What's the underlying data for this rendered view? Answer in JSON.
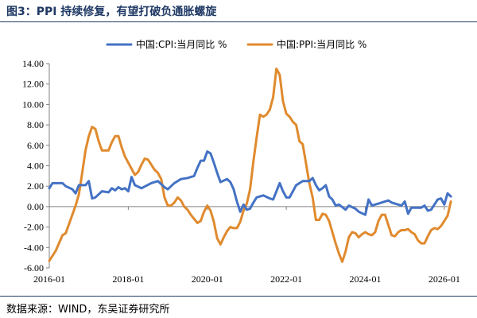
{
  "figure": {
    "title": "图3：PPI 持续修复，有望打破负通胀螺旋",
    "source": "数据来源：WIND，东吴证券研究所"
  },
  "chart_data": {
    "type": "line",
    "x_unit": "month",
    "x_start": "2016-01",
    "x_end": "2026-02",
    "ylim": [
      -6,
      14
    ],
    "yticks": [
      "-6.00",
      "-4.00",
      "-2.00",
      "0.00",
      "2.00",
      "4.00",
      "6.00",
      "8.00",
      "10.00",
      "12.00",
      "14.00"
    ],
    "xticks": [
      "2016-01",
      "2018-01",
      "2020-01",
      "2022-01",
      "2024-01",
      "2026-01"
    ],
    "legend_position": "top",
    "grid": false,
    "series": [
      {
        "name": "中国:CPI:当月同比 %",
        "color": "#4472c4",
        "points": [
          [
            "2016-01",
            1.8
          ],
          [
            "2016-02",
            2.3
          ],
          [
            "2016-05",
            2.3
          ],
          [
            "2016-06",
            2.0
          ],
          [
            "2016-08",
            1.7
          ],
          [
            "2016-09",
            1.3
          ],
          [
            "2016-10",
            2.1
          ],
          [
            "2016-12",
            2.1
          ],
          [
            "2017-01",
            2.5
          ],
          [
            "2017-02",
            0.8
          ],
          [
            "2017-03",
            0.9
          ],
          [
            "2017-05",
            1.5
          ],
          [
            "2017-07",
            1.4
          ],
          [
            "2017-08",
            1.8
          ],
          [
            "2017-09",
            1.6
          ],
          [
            "2017-10",
            1.9
          ],
          [
            "2017-11",
            1.7
          ],
          [
            "2017-12",
            1.8
          ],
          [
            "2018-01",
            1.5
          ],
          [
            "2018-02",
            2.9
          ],
          [
            "2018-03",
            2.1
          ],
          [
            "2018-05",
            1.8
          ],
          [
            "2018-08",
            2.3
          ],
          [
            "2018-10",
            2.5
          ],
          [
            "2018-12",
            1.9
          ],
          [
            "2019-01",
            1.7
          ],
          [
            "2019-03",
            2.3
          ],
          [
            "2019-05",
            2.7
          ],
          [
            "2019-07",
            2.8
          ],
          [
            "2019-09",
            3.0
          ],
          [
            "2019-10",
            3.8
          ],
          [
            "2019-11",
            4.5
          ],
          [
            "2019-12",
            4.5
          ],
          [
            "2020-01",
            5.4
          ],
          [
            "2020-02",
            5.2
          ],
          [
            "2020-03",
            4.3
          ],
          [
            "2020-04",
            3.3
          ],
          [
            "2020-05",
            2.4
          ],
          [
            "2020-07",
            2.7
          ],
          [
            "2020-08",
            2.4
          ],
          [
            "2020-09",
            1.7
          ],
          [
            "2020-10",
            0.5
          ],
          [
            "2020-11",
            -0.5
          ],
          [
            "2020-12",
            0.2
          ],
          [
            "2021-01",
            -0.3
          ],
          [
            "2021-02",
            -0.2
          ],
          [
            "2021-03",
            0.4
          ],
          [
            "2021-04",
            0.9
          ],
          [
            "2021-06",
            1.1
          ],
          [
            "2021-08",
            0.8
          ],
          [
            "2021-09",
            0.7
          ],
          [
            "2021-10",
            1.5
          ],
          [
            "2021-11",
            2.3
          ],
          [
            "2021-12",
            1.5
          ],
          [
            "2022-01",
            0.9
          ],
          [
            "2022-02",
            0.9
          ],
          [
            "2022-03",
            1.5
          ],
          [
            "2022-04",
            2.1
          ],
          [
            "2022-06",
            2.5
          ],
          [
            "2022-08",
            2.5
          ],
          [
            "2022-09",
            2.8
          ],
          [
            "2022-10",
            2.1
          ],
          [
            "2022-11",
            1.6
          ],
          [
            "2022-12",
            1.8
          ],
          [
            "2023-01",
            2.1
          ],
          [
            "2023-02",
            1.0
          ],
          [
            "2023-03",
            0.7
          ],
          [
            "2023-04",
            0.1
          ],
          [
            "2023-05",
            0.2
          ],
          [
            "2023-07",
            -0.3
          ],
          [
            "2023-08",
            0.1
          ],
          [
            "2023-10",
            -0.2
          ],
          [
            "2023-11",
            -0.5
          ],
          [
            "2024-01",
            -0.8
          ],
          [
            "2024-02",
            0.7
          ],
          [
            "2024-03",
            0.1
          ],
          [
            "2024-05",
            0.3
          ],
          [
            "2024-07",
            0.5
          ],
          [
            "2024-08",
            0.6
          ],
          [
            "2024-09",
            0.4
          ],
          [
            "2024-10",
            0.3
          ],
          [
            "2024-11",
            0.2
          ],
          [
            "2024-12",
            0.1
          ],
          [
            "2025-01",
            0.5
          ],
          [
            "2025-02",
            -0.7
          ],
          [
            "2025-03",
            -0.1
          ],
          [
            "2025-06",
            -0.1
          ],
          [
            "2025-07",
            0.1
          ],
          [
            "2025-08",
            -0.4
          ],
          [
            "2025-09",
            -0.3
          ],
          [
            "2025-10",
            0.2
          ],
          [
            "2025-11",
            0.7
          ],
          [
            "2025-12",
            0.8
          ],
          [
            "2026-01",
            0.2
          ],
          [
            "2026-02",
            1.3
          ],
          [
            "2026-03",
            1.0
          ]
        ]
      },
      {
        "name": "中国:PPI:当月同比 %",
        "color": "#e08a2e",
        "points": [
          [
            "2016-01",
            -5.3
          ],
          [
            "2016-03",
            -4.3
          ],
          [
            "2016-05",
            -2.8
          ],
          [
            "2016-06",
            -2.6
          ],
          [
            "2016-08",
            -0.8
          ],
          [
            "2016-09",
            0.1
          ],
          [
            "2016-10",
            1.2
          ],
          [
            "2016-11",
            3.3
          ],
          [
            "2016-12",
            5.5
          ],
          [
            "2017-01",
            6.9
          ],
          [
            "2017-02",
            7.8
          ],
          [
            "2017-03",
            7.6
          ],
          [
            "2017-04",
            6.4
          ],
          [
            "2017-05",
            5.5
          ],
          [
            "2017-07",
            5.5
          ],
          [
            "2017-08",
            6.3
          ],
          [
            "2017-09",
            6.9
          ],
          [
            "2017-10",
            6.9
          ],
          [
            "2017-11",
            5.8
          ],
          [
            "2017-12",
            4.9
          ],
          [
            "2018-01",
            4.3
          ],
          [
            "2018-02",
            3.7
          ],
          [
            "2018-03",
            3.1
          ],
          [
            "2018-04",
            3.4
          ],
          [
            "2018-05",
            4.1
          ],
          [
            "2018-06",
            4.7
          ],
          [
            "2018-07",
            4.6
          ],
          [
            "2018-08",
            4.1
          ],
          [
            "2018-09",
            3.6
          ],
          [
            "2018-10",
            3.3
          ],
          [
            "2018-11",
            2.7
          ],
          [
            "2018-12",
            0.9
          ],
          [
            "2019-01",
            0.1
          ],
          [
            "2019-02",
            0.1
          ],
          [
            "2019-03",
            0.4
          ],
          [
            "2019-04",
            0.9
          ],
          [
            "2019-05",
            0.6
          ],
          [
            "2019-06",
            0.0
          ],
          [
            "2019-07",
            -0.3
          ],
          [
            "2019-08",
            -0.8
          ],
          [
            "2019-09",
            -1.2
          ],
          [
            "2019-10",
            -1.6
          ],
          [
            "2019-11",
            -1.4
          ],
          [
            "2019-12",
            -0.5
          ],
          [
            "2020-01",
            0.1
          ],
          [
            "2020-02",
            -0.4
          ],
          [
            "2020-03",
            -1.5
          ],
          [
            "2020-04",
            -3.1
          ],
          [
            "2020-05",
            -3.7
          ],
          [
            "2020-06",
            -3.0
          ],
          [
            "2020-07",
            -2.4
          ],
          [
            "2020-08",
            -2.0
          ],
          [
            "2020-09",
            -2.1
          ],
          [
            "2020-10",
            -2.1
          ],
          [
            "2020-11",
            -1.5
          ],
          [
            "2020-12",
            -0.4
          ],
          [
            "2021-01",
            0.3
          ],
          [
            "2021-02",
            1.7
          ],
          [
            "2021-03",
            4.4
          ],
          [
            "2021-04",
            6.8
          ],
          [
            "2021-05",
            9.0
          ],
          [
            "2021-06",
            8.8
          ],
          [
            "2021-07",
            9.0
          ],
          [
            "2021-08",
            9.5
          ],
          [
            "2021-09",
            10.7
          ],
          [
            "2021-10",
            13.5
          ],
          [
            "2021-11",
            12.9
          ],
          [
            "2021-12",
            10.3
          ],
          [
            "2022-01",
            9.1
          ],
          [
            "2022-02",
            8.8
          ],
          [
            "2022-03",
            8.3
          ],
          [
            "2022-04",
            8.0
          ],
          [
            "2022-05",
            6.4
          ],
          [
            "2022-06",
            6.1
          ],
          [
            "2022-07",
            4.2
          ],
          [
            "2022-08",
            2.3
          ],
          [
            "2022-09",
            0.9
          ],
          [
            "2022-10",
            -1.3
          ],
          [
            "2022-11",
            -1.3
          ],
          [
            "2022-12",
            -0.7
          ],
          [
            "2023-01",
            -0.8
          ],
          [
            "2023-02",
            -1.4
          ],
          [
            "2023-03",
            -2.5
          ],
          [
            "2023-04",
            -3.6
          ],
          [
            "2023-05",
            -4.6
          ],
          [
            "2023-06",
            -5.4
          ],
          [
            "2023-07",
            -4.4
          ],
          [
            "2023-08",
            -3.0
          ],
          [
            "2023-09",
            -2.5
          ],
          [
            "2023-10",
            -2.6
          ],
          [
            "2023-11",
            -3.0
          ],
          [
            "2023-12",
            -2.7
          ],
          [
            "2024-01",
            -2.5
          ],
          [
            "2024-02",
            -2.7
          ],
          [
            "2024-03",
            -2.8
          ],
          [
            "2024-04",
            -2.5
          ],
          [
            "2024-05",
            -1.4
          ],
          [
            "2024-06",
            -0.8
          ],
          [
            "2024-07",
            -0.8
          ],
          [
            "2024-08",
            -1.8
          ],
          [
            "2024-09",
            -2.8
          ],
          [
            "2024-10",
            -2.9
          ],
          [
            "2024-11",
            -2.5
          ],
          [
            "2024-12",
            -2.3
          ],
          [
            "2025-01",
            -2.3
          ],
          [
            "2025-02",
            -2.2
          ],
          [
            "2025-03",
            -2.5
          ],
          [
            "2025-04",
            -2.7
          ],
          [
            "2025-05",
            -3.3
          ],
          [
            "2025-06",
            -3.6
          ],
          [
            "2025-07",
            -3.6
          ],
          [
            "2025-08",
            -2.9
          ],
          [
            "2025-09",
            -2.3
          ],
          [
            "2025-10",
            -2.1
          ],
          [
            "2025-11",
            -2.2
          ],
          [
            "2025-12",
            -1.9
          ],
          [
            "2026-01",
            -1.4
          ],
          [
            "2026-02",
            -0.9
          ],
          [
            "2026-03",
            0.5
          ]
        ]
      }
    ]
  }
}
